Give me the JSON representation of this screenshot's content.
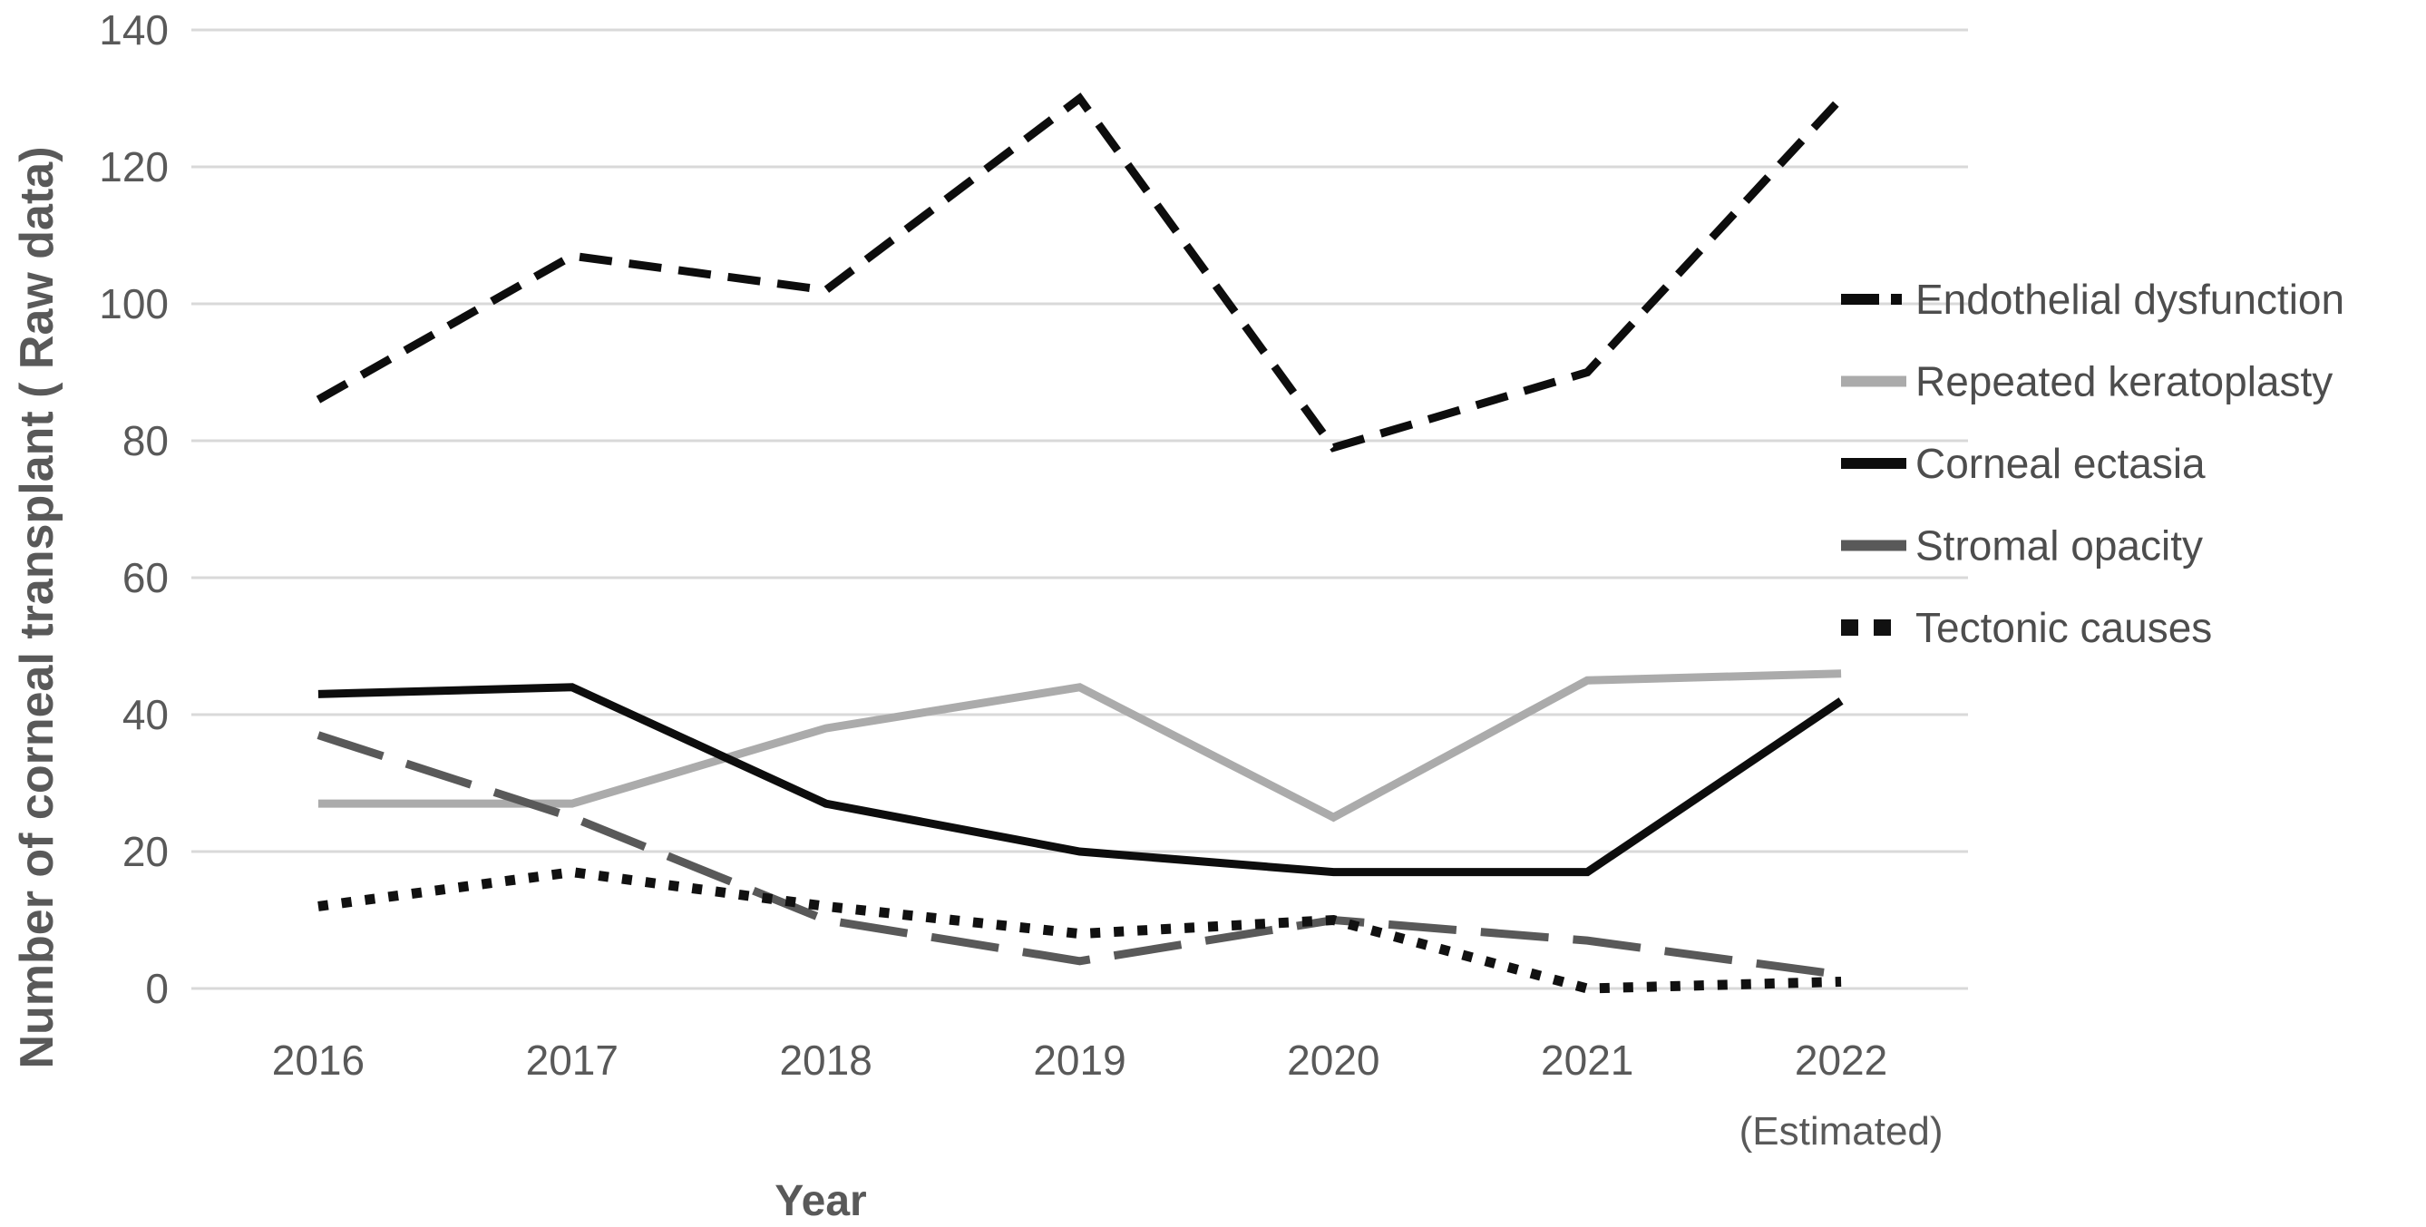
{
  "chart_data": {
    "type": "line",
    "title": "",
    "xlabel": "Year",
    "ylabel": "Number of corneal transplant ( Raw data)",
    "categories": [
      "2016",
      "2017",
      "2018",
      "2019",
      "2020",
      "2021",
      "2022"
    ],
    "x_last_sub_label": "(Estimated)",
    "ylim": [
      0,
      140
    ],
    "ytick_step": 20,
    "yticks": [
      0,
      20,
      40,
      60,
      80,
      100,
      120,
      140
    ],
    "grid": "horizontal-only",
    "legend_position": "right",
    "colors": {
      "background": "#ffffff",
      "gridline": "#d9d9d9",
      "axis_text": "#595959",
      "legend_text": "#4d4d4d"
    },
    "series": [
      {
        "name": "Endothelial dysfunction",
        "values": [
          86,
          107,
          102,
          130,
          79,
          90,
          130
        ],
        "color": "#0d0d0d",
        "style": "dashed"
      },
      {
        "name": "Repeated keratoplasty",
        "values": [
          27,
          27,
          38,
          44,
          25,
          45,
          46
        ],
        "color": "#ababab",
        "style": "solid"
      },
      {
        "name": "Corneal ectasia",
        "values": [
          43,
          44,
          27,
          20,
          17,
          17,
          42
        ],
        "color": "#0d0d0d",
        "style": "solid"
      },
      {
        "name": "Stromal opacity",
        "values": [
          37,
          25,
          10,
          4,
          10,
          7,
          2
        ],
        "color": "#595959",
        "style": "long-dash"
      },
      {
        "name": "Tectonic causes",
        "values": [
          12,
          17,
          12,
          8,
          10,
          0,
          1
        ],
        "color": "#111111",
        "style": "dotted"
      }
    ]
  }
}
